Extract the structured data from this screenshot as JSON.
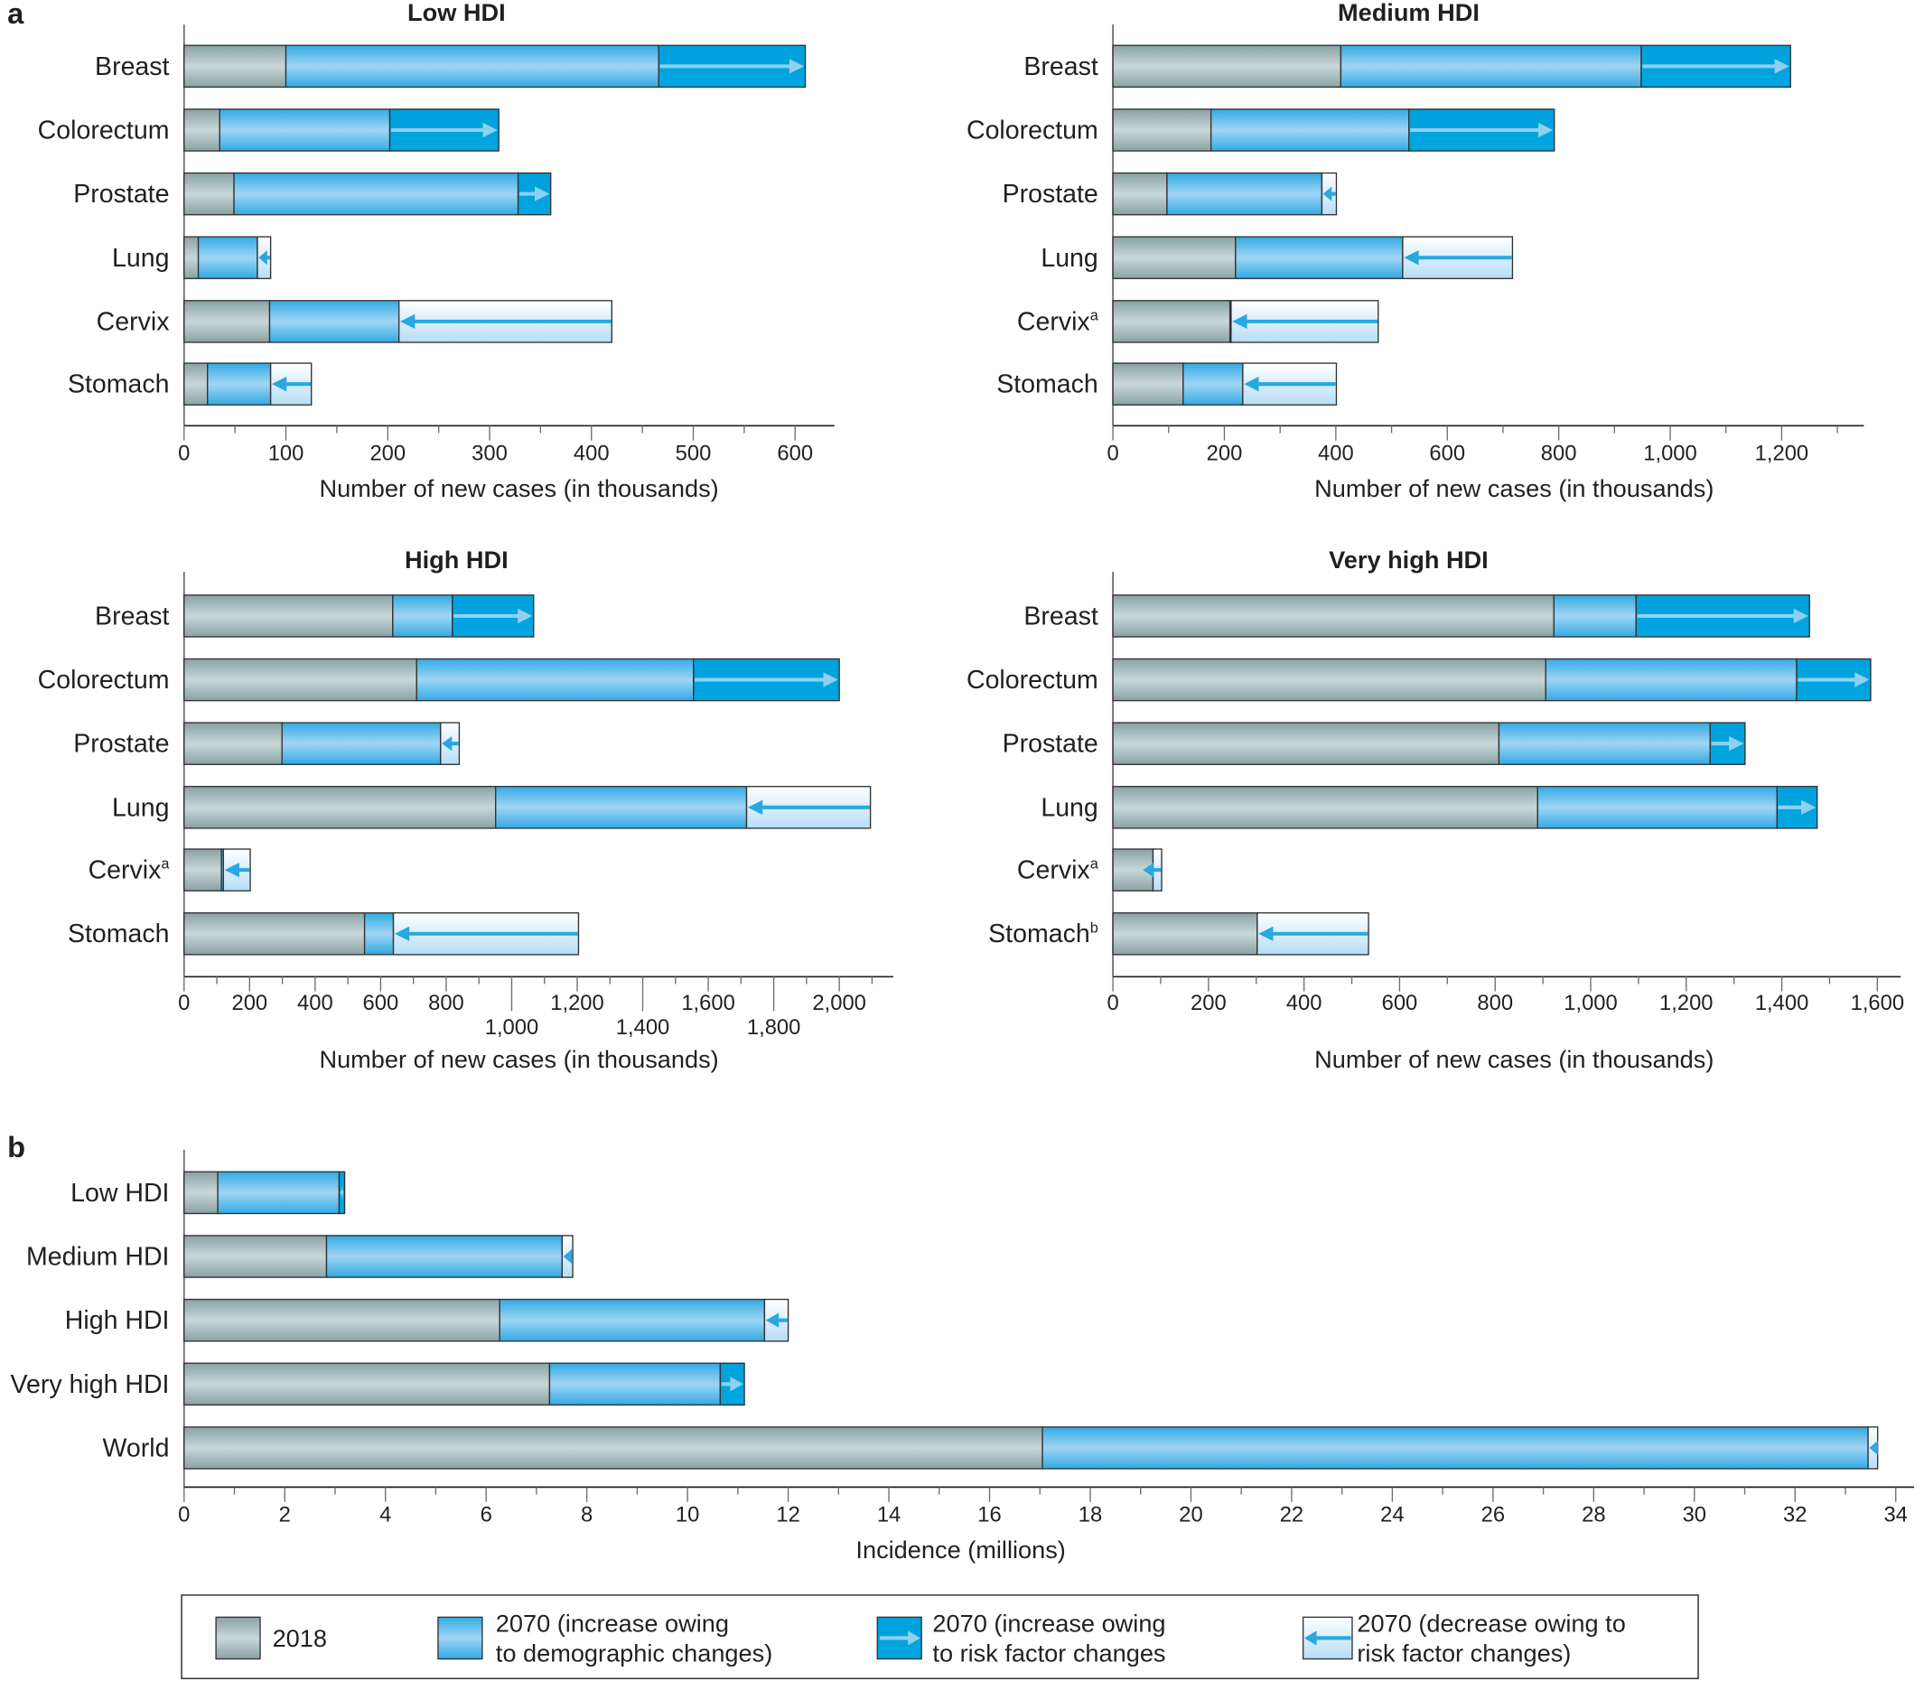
{
  "figure": {
    "panel_a_letter": "a",
    "panel_b_letter": "b"
  },
  "colors": {
    "year_2018": "#9fb4b6",
    "demographic_increase": "#4db5e8",
    "risk_factor_increase": "#00a3de",
    "risk_factor_decrease": "#d7eefb",
    "arrow_on_dark": "#8fd0f0",
    "arrow_on_light": "#29a8e0"
  },
  "legend": {
    "items": [
      {
        "key": "year_2018",
        "line1": "2018",
        "line2": ""
      },
      {
        "key": "demographic_increase",
        "line1": "2070 (increase owing",
        "line2": "to demographic changes)"
      },
      {
        "key": "risk_factor_increase",
        "line1": "2070 (increase owing",
        "line2": "to risk factor changes"
      },
      {
        "key": "risk_factor_decrease",
        "line1": "2070 (decrease owing to",
        "line2": "risk factor changes)"
      }
    ]
  },
  "chart_data": [
    {
      "id": "low-hdi",
      "panel": "a",
      "type": "bar",
      "orientation": "horizontal",
      "stacked": true,
      "title": "Low HDI",
      "xlabel": "Number of new cases (in thousands)",
      "ylabel": "",
      "xlim": [
        0,
        640
      ],
      "xticks": [
        0,
        100,
        200,
        300,
        400,
        500,
        600
      ],
      "xtick_labels": [
        "0",
        "100",
        "200",
        "300",
        "400",
        "500",
        "600"
      ],
      "minor_tick_step": 50,
      "categories": [
        {
          "name": "Breast",
          "sup": ""
        },
        {
          "name": "Colorectum",
          "sup": ""
        },
        {
          "name": "Prostate",
          "sup": ""
        },
        {
          "name": "Lung",
          "sup": ""
        },
        {
          "name": "Cervix",
          "sup": ""
        },
        {
          "name": "Stomach",
          "sup": ""
        }
      ],
      "series": [
        {
          "name": "2018",
          "values": [
            100,
            35,
            49,
            14,
            84,
            23
          ]
        },
        {
          "name": "2070 (demographic changes only)",
          "values": [
            466,
            202,
            328,
            85,
            420,
            125
          ]
        },
        {
          "name": "2070 (demographic + risk factor changes)",
          "values": [
            610,
            309,
            360,
            72,
            211,
            85
          ]
        }
      ]
    },
    {
      "id": "medium-hdi",
      "panel": "a",
      "type": "bar",
      "orientation": "horizontal",
      "stacked": true,
      "title": "Medium HDI",
      "xlabel": "Number of new cases (in thousands)",
      "ylabel": "",
      "xlim": [
        0,
        1340
      ],
      "xticks": [
        0,
        200,
        400,
        600,
        800,
        1000,
        1200
      ],
      "xtick_labels": [
        "0",
        "200",
        "400",
        "600",
        "800",
        "1,000",
        "1,200"
      ],
      "minor_tick_step": 100,
      "categories": [
        {
          "name": "Breast",
          "sup": ""
        },
        {
          "name": "Colorectum",
          "sup": ""
        },
        {
          "name": "Prostate",
          "sup": ""
        },
        {
          "name": "Lung",
          "sup": ""
        },
        {
          "name": "Cervix",
          "sup": "a"
        },
        {
          "name": "Stomach",
          "sup": ""
        }
      ],
      "series": [
        {
          "name": "2018",
          "values": [
            409,
            176,
            97,
            220,
            210,
            126
          ]
        },
        {
          "name": "2070 (demographic changes only)",
          "values": [
            948,
            531,
            401,
            717,
            476,
            401
          ]
        },
        {
          "name": "2070 (demographic + risk factor changes)",
          "values": [
            1216,
            792,
            375,
            520,
            212,
            233
          ]
        }
      ]
    },
    {
      "id": "high-hdi",
      "panel": "a",
      "type": "bar",
      "orientation": "horizontal",
      "stacked": true,
      "title": "High HDI",
      "xlabel": "Number of new cases (in thousands)",
      "ylabel": "",
      "xlim": [
        0,
        2170
      ],
      "xticks": [
        0,
        200,
        400,
        600,
        800,
        1000,
        1200,
        1400,
        1600,
        1800,
        2000
      ],
      "xtick_labels": [
        "0",
        "200",
        "400",
        "600",
        "800",
        "1,000",
        "1,200",
        "1,400",
        "1,600",
        "1,800",
        "2,000"
      ],
      "xtick_rows": [
        0,
        0,
        0,
        0,
        0,
        1,
        0,
        1,
        0,
        1,
        0
      ],
      "minor_tick_step": 100,
      "categories": [
        {
          "name": "Breast",
          "sup": ""
        },
        {
          "name": "Colorectum",
          "sup": ""
        },
        {
          "name": "Prostate",
          "sup": ""
        },
        {
          "name": "Lung",
          "sup": ""
        },
        {
          "name": "Cervix",
          "sup": "a"
        },
        {
          "name": "Stomach",
          "sup": ""
        }
      ],
      "series": [
        {
          "name": "2018",
          "values": [
            637,
            710,
            299,
            951,
            114,
            551
          ]
        },
        {
          "name": "2070 (demographic changes only)",
          "values": [
            819,
            1555,
            840,
            2095,
            202,
            1204
          ]
        },
        {
          "name": "2070 (demographic + risk factor changes)",
          "values": [
            1067,
            2000,
            783,
            1717,
            120,
            639
          ]
        }
      ]
    },
    {
      "id": "very-high-hdi",
      "panel": "a",
      "type": "bar",
      "orientation": "horizontal",
      "stacked": true,
      "title": "Very high HDI",
      "xlabel": "Number of new cases (in thousands)",
      "ylabel": "",
      "xlim": [
        0,
        1650
      ],
      "xticks": [
        0,
        200,
        400,
        600,
        800,
        1000,
        1200,
        1400,
        1600
      ],
      "xtick_labels": [
        "0",
        "200",
        "400",
        "600",
        "800",
        "1,000",
        "1,200",
        "1,400",
        "1,600"
      ],
      "minor_tick_step": 100,
      "categories": [
        {
          "name": "Breast",
          "sup": ""
        },
        {
          "name": "Colorectum",
          "sup": ""
        },
        {
          "name": "Prostate",
          "sup": ""
        },
        {
          "name": "Lung",
          "sup": ""
        },
        {
          "name": "Cervix",
          "sup": "a"
        },
        {
          "name": "Stomach",
          "sup": "b"
        }
      ],
      "series": [
        {
          "name": "2018",
          "values": [
            923,
            906,
            808,
            889,
            84,
            302
          ]
        },
        {
          "name": "2070 (demographic changes only)",
          "values": [
            1095,
            1431,
            1250,
            1390,
            102,
            535
          ]
        },
        {
          "name": "2070 (demographic + risk factor changes)",
          "values": [
            1458,
            1586,
            1323,
            1474,
            60,
            302
          ]
        }
      ]
    },
    {
      "id": "total-incidence",
      "panel": "b",
      "type": "bar",
      "orientation": "horizontal",
      "stacked": true,
      "title": "",
      "xlabel": "Incidence (millions)",
      "ylabel": "",
      "xlim": [
        0,
        34
      ],
      "xticks": [
        0,
        2,
        4,
        6,
        8,
        10,
        12,
        14,
        16,
        18,
        20,
        22,
        24,
        26,
        28,
        30,
        32,
        34
      ],
      "xtick_labels": [
        "0",
        "2",
        "4",
        "6",
        "8",
        "10",
        "12",
        "14",
        "16",
        "18",
        "20",
        "22",
        "24",
        "26",
        "28",
        "30",
        "32",
        "34"
      ],
      "minor_tick_step": 1,
      "categories": [
        {
          "name": "Low HDI",
          "sup": ""
        },
        {
          "name": "Medium HDI",
          "sup": ""
        },
        {
          "name": "High HDI",
          "sup": ""
        },
        {
          "name": "Very high HDI",
          "sup": ""
        },
        {
          "name": "World",
          "sup": ""
        }
      ],
      "series": [
        {
          "name": "2018",
          "values": [
            0.67,
            2.83,
            6.27,
            7.26,
            17.05
          ]
        },
        {
          "name": "2070 (demographic changes only)",
          "values": [
            3.08,
            7.72,
            12.0,
            10.65,
            33.64
          ]
        },
        {
          "name": "2070 (demographic + risk factor changes)",
          "values": [
            3.19,
            7.51,
            11.53,
            11.13,
            33.45
          ]
        }
      ]
    }
  ]
}
